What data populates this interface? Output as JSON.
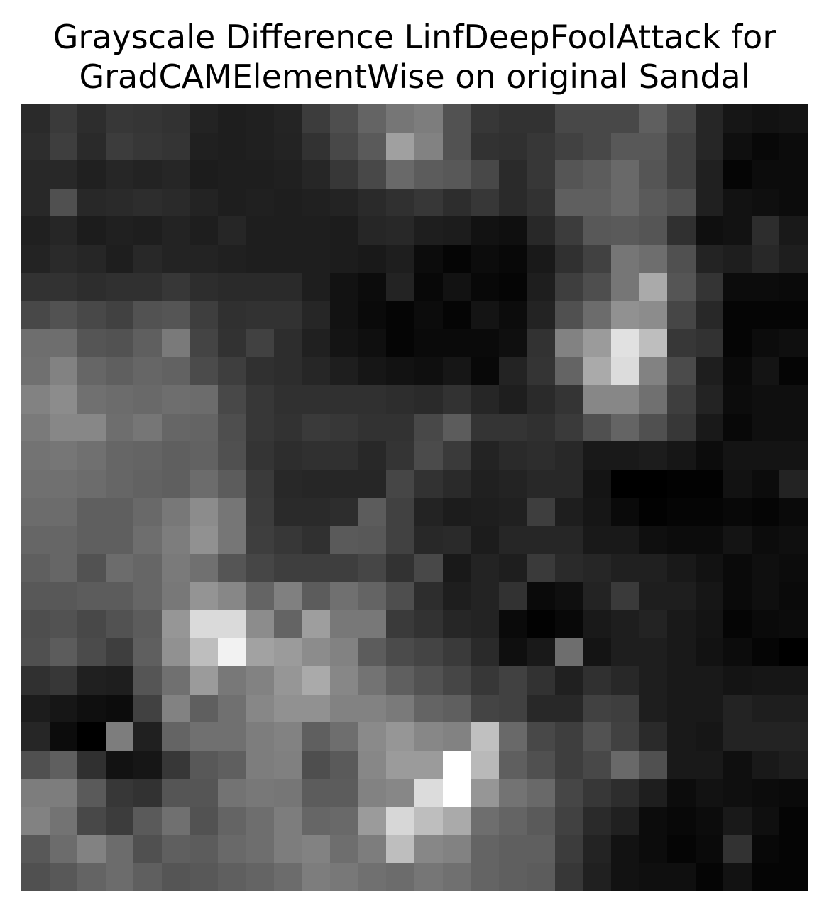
{
  "chart_data": {
    "type": "heatmap",
    "title_lines": [
      "Grayscale Difference LinfDeepFoolAttack for",
      "GradCAMElementWise on original Sandal"
    ],
    "colormap": "gray",
    "axes_visible": false,
    "rows": 28,
    "cols": 28,
    "values": [
      [
        42,
        58,
        45,
        55,
        53,
        50,
        35,
        30,
        32,
        36,
        60,
        78,
        100,
        118,
        125,
        82,
        55,
        50,
        50,
        72,
        72,
        72,
        95,
        72,
        38,
        22,
        18,
        20
      ],
      [
        45,
        62,
        42,
        60,
        55,
        52,
        32,
        30,
        32,
        35,
        50,
        72,
        90,
        160,
        130,
        82,
        50,
        48,
        55,
        65,
        72,
        88,
        88,
        65,
        38,
        15,
        8,
        12
      ],
      [
        40,
        40,
        32,
        38,
        35,
        38,
        28,
        30,
        30,
        32,
        38,
        55,
        72,
        105,
        92,
        88,
        72,
        42,
        55,
        85,
        92,
        105,
        85,
        65,
        32,
        5,
        12,
        12
      ],
      [
        40,
        80,
        40,
        42,
        45,
        42,
        35,
        30,
        32,
        30,
        32,
        35,
        42,
        48,
        55,
        45,
        55,
        42,
        50,
        95,
        95,
        105,
        90,
        80,
        32,
        18,
        15,
        12
      ],
      [
        32,
        38,
        28,
        32,
        30,
        35,
        30,
        38,
        30,
        30,
        30,
        28,
        38,
        40,
        30,
        28,
        18,
        15,
        40,
        60,
        88,
        90,
        85,
        48,
        15,
        18,
        45,
        25
      ],
      [
        35,
        42,
        38,
        30,
        40,
        35,
        35,
        32,
        30,
        30,
        30,
        28,
        25,
        30,
        12,
        5,
        12,
        8,
        25,
        48,
        65,
        118,
        110,
        80,
        35,
        30,
        40,
        30
      ],
      [
        50,
        50,
        45,
        48,
        48,
        55,
        45,
        42,
        42,
        42,
        30,
        18,
        12,
        35,
        8,
        18,
        8,
        5,
        30,
        62,
        78,
        118,
        170,
        85,
        52,
        12,
        12,
        10
      ],
      [
        72,
        82,
        72,
        65,
        82,
        85,
        62,
        48,
        50,
        50,
        38,
        18,
        10,
        5,
        12,
        5,
        20,
        12,
        35,
        80,
        108,
        145,
        140,
        70,
        40,
        5,
        5,
        5
      ],
      [
        110,
        110,
        85,
        82,
        95,
        122,
        68,
        50,
        65,
        45,
        32,
        20,
        15,
        5,
        10,
        10,
        10,
        15,
        50,
        130,
        155,
        225,
        190,
        55,
        50,
        5,
        12,
        15
      ],
      [
        112,
        130,
        102,
        95,
        102,
        98,
        75,
        62,
        48,
        45,
        38,
        30,
        22,
        18,
        15,
        22,
        8,
        35,
        52,
        100,
        170,
        220,
        130,
        75,
        30,
        10,
        20,
        5
      ],
      [
        130,
        140,
        112,
        108,
        105,
        110,
        108,
        72,
        55,
        48,
        48,
        48,
        48,
        45,
        42,
        50,
        38,
        30,
        42,
        52,
        135,
        135,
        112,
        62,
        35,
        12,
        15,
        15
      ],
      [
        122,
        135,
        135,
        110,
        118,
        102,
        100,
        78,
        55,
        50,
        58,
        55,
        50,
        50,
        72,
        92,
        52,
        52,
        48,
        58,
        80,
        100,
        80,
        55,
        25,
        8,
        15,
        15
      ],
      [
        115,
        118,
        112,
        102,
        100,
        95,
        98,
        80,
        52,
        45,
        48,
        48,
        40,
        52,
        75,
        58,
        35,
        42,
        45,
        40,
        25,
        25,
        28,
        22,
        12,
        20,
        20,
        20
      ],
      [
        112,
        112,
        108,
        102,
        98,
        95,
        108,
        92,
        58,
        40,
        38,
        38,
        38,
        70,
        50,
        42,
        32,
        35,
        40,
        40,
        20,
        0,
        0,
        2,
        2,
        18,
        12,
        35
      ],
      [
        108,
        108,
        95,
        95,
        105,
        120,
        140,
        118,
        60,
        42,
        42,
        45,
        92,
        65,
        35,
        28,
        30,
        32,
        62,
        30,
        22,
        10,
        2,
        5,
        5,
        8,
        5,
        10
      ],
      [
        102,
        102,
        95,
        95,
        110,
        125,
        145,
        118,
        62,
        55,
        48,
        90,
        88,
        65,
        40,
        42,
        28,
        38,
        38,
        38,
        25,
        25,
        15,
        12,
        12,
        20,
        12,
        15
      ],
      [
        95,
        102,
        82,
        108,
        102,
        122,
        112,
        85,
        70,
        62,
        62,
        62,
        70,
        50,
        72,
        25,
        35,
        30,
        58,
        42,
        38,
        32,
        32,
        25,
        18,
        10,
        15,
        12
      ],
      [
        88,
        88,
        92,
        92,
        102,
        120,
        148,
        135,
        100,
        128,
        92,
        112,
        100,
        78,
        45,
        30,
        35,
        50,
        10,
        15,
        35,
        58,
        30,
        30,
        22,
        10,
        15,
        10
      ],
      [
        78,
        82,
        72,
        82,
        92,
        150,
        218,
        218,
        140,
        100,
        158,
        120,
        120,
        58,
        50,
        38,
        35,
        10,
        2,
        8,
        25,
        30,
        35,
        25,
        20,
        5,
        10,
        12
      ],
      [
        80,
        92,
        75,
        62,
        95,
        145,
        190,
        242,
        162,
        155,
        140,
        130,
        92,
        75,
        68,
        58,
        42,
        15,
        25,
        110,
        20,
        30,
        30,
        25,
        18,
        12,
        5,
        0
      ],
      [
        48,
        55,
        32,
        30,
        85,
        112,
        155,
        120,
        130,
        150,
        170,
        135,
        115,
        95,
        82,
        70,
        55,
        65,
        50,
        32,
        48,
        40,
        30,
        25,
        25,
        20,
        22,
        22
      ],
      [
        28,
        22,
        15,
        12,
        65,
        130,
        95,
        112,
        135,
        145,
        145,
        130,
        130,
        122,
        100,
        95,
        68,
        65,
        40,
        40,
        65,
        62,
        30,
        25,
        25,
        35,
        30,
        30
      ],
      [
        38,
        12,
        0,
        125,
        32,
        100,
        112,
        112,
        125,
        130,
        95,
        110,
        138,
        150,
        135,
        130,
        192,
        105,
        72,
        62,
        82,
        65,
        42,
        25,
        22,
        35,
        35,
        35
      ],
      [
        80,
        95,
        48,
        18,
        22,
        55,
        88,
        95,
        125,
        128,
        78,
        90,
        135,
        155,
        155,
        255,
        185,
        95,
        80,
        62,
        72,
        105,
        80,
        25,
        25,
        15,
        25,
        30
      ],
      [
        125,
        125,
        90,
        55,
        50,
        85,
        85,
        115,
        120,
        118,
        92,
        92,
        130,
        135,
        220,
        255,
        150,
        115,
        105,
        70,
        55,
        45,
        30,
        12,
        18,
        15,
        12,
        10
      ],
      [
        130,
        115,
        72,
        60,
        90,
        112,
        82,
        100,
        110,
        125,
        102,
        105,
        155,
        215,
        190,
        170,
        110,
        100,
        90,
        65,
        42,
        32,
        12,
        8,
        12,
        25,
        15,
        5
      ],
      [
        88,
        108,
        130,
        108,
        80,
        95,
        92,
        105,
        110,
        125,
        130,
        110,
        125,
        190,
        135,
        130,
        100,
        95,
        95,
        60,
        35,
        18,
        12,
        5,
        10,
        50,
        8,
        5
      ],
      [
        80,
        88,
        100,
        108,
        95,
        85,
        88,
        95,
        100,
        108,
        125,
        120,
        112,
        108,
        118,
        112,
        100,
        95,
        92,
        55,
        32,
        18,
        15,
        15,
        5,
        18,
        5,
        5
      ]
    ]
  }
}
